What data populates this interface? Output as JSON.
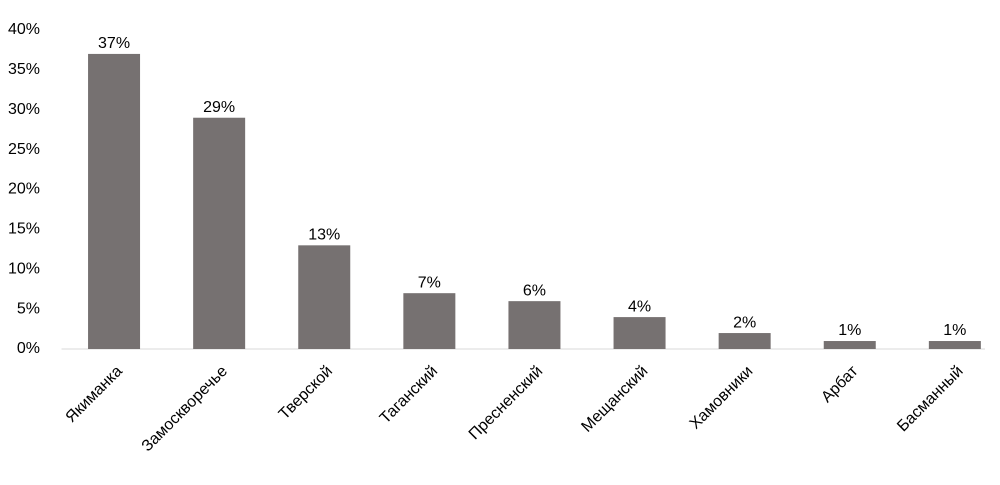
{
  "chart_data": {
    "type": "bar",
    "categories": [
      "Якиманка",
      "Замоскворечье",
      "Тверской",
      "Таганский",
      "Пресненский",
      "Мещанский",
      "Хамовники",
      "Арбат",
      "Басманный"
    ],
    "values": [
      37,
      29,
      13,
      7,
      6,
      4,
      2,
      1,
      1
    ],
    "value_labels": [
      "37%",
      "29%",
      "13%",
      "7%",
      "6%",
      "4%",
      "2%",
      "1%",
      "1%"
    ],
    "color": "#767171",
    "ylim": [
      0,
      40
    ],
    "yticks": [
      {
        "value": 0,
        "label": "0%"
      },
      {
        "value": 5,
        "label": "5%"
      },
      {
        "value": 10,
        "label": "10%"
      },
      {
        "value": 15,
        "label": "15%"
      },
      {
        "value": 20,
        "label": "20%"
      },
      {
        "value": 25,
        "label": "25%"
      },
      {
        "value": 30,
        "label": "30%"
      },
      {
        "value": 35,
        "label": "35%"
      },
      {
        "value": 40,
        "label": "40%"
      }
    ],
    "grid": false
  }
}
